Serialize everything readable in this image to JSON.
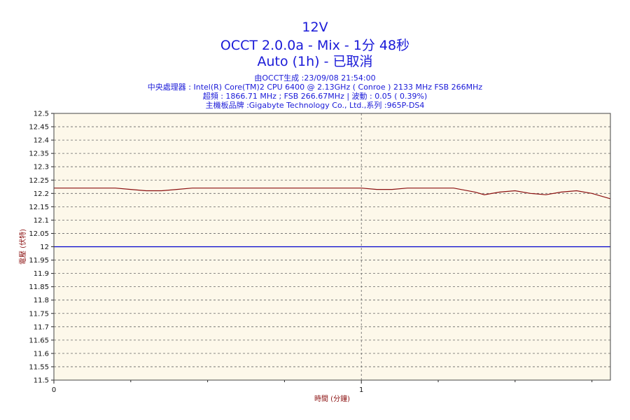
{
  "header": {
    "title": "12V",
    "subtitle": "OCCT 2.0.0a - Mix - 1分 48秒",
    "mode": "Auto (1h) - 已取消",
    "info": [
      "由OCCT生成 :23/09/08 21:54:00",
      "中央處理器 : Intel(R) Core(TM)2 CPU 6400 @ 2.13GHz ( Conroe ) 2133 MHz FSB 266MHz",
      "超頻 : 1866.71 MHz ; FSB 266.67MHz | 波動 : 0.05 ( 0.39%)",
      "主機板品牌 :Gigabyte Technology Co., Ltd.,系列 :965P-DS4"
    ]
  },
  "chart_data": {
    "type": "line",
    "title": "12V",
    "xlabel": "時間 (分鐘)",
    "ylabel": "電壓 (伏特)",
    "xlim": [
      0,
      1.81
    ],
    "ylim": [
      11.5,
      12.5
    ],
    "y_ticks": [
      "11.5",
      "11.55",
      "11.6",
      "11.65",
      "11.7",
      "11.75",
      "11.8",
      "11.85",
      "11.9",
      "11.95",
      "12",
      "12.05",
      "12.1",
      "12.15",
      "12.2",
      "12.25",
      "12.3",
      "12.35",
      "12.4",
      "12.45",
      "12.5"
    ],
    "x_tick_labels": [
      {
        "value": 0,
        "label": "0"
      },
      {
        "value": 1,
        "label": "1"
      }
    ],
    "x_minor_ticks": [
      0.25,
      0.5,
      0.75,
      1.25,
      1.5,
      1.75
    ],
    "grid": true,
    "background": "#fdf8ea",
    "series": [
      {
        "color": "#8b1010",
        "x": [
          0,
          0.1,
          0.2,
          0.25,
          0.3,
          0.35,
          0.4,
          0.45,
          0.5,
          0.6,
          0.7,
          0.8,
          0.9,
          1.0,
          1.05,
          1.1,
          1.15,
          1.2,
          1.3,
          1.37,
          1.4,
          1.45,
          1.5,
          1.55,
          1.6,
          1.65,
          1.7,
          1.75,
          1.81
        ],
        "y": [
          12.22,
          12.22,
          12.22,
          12.215,
          12.21,
          12.21,
          12.215,
          12.22,
          12.22,
          12.22,
          12.22,
          12.22,
          12.22,
          12.22,
          12.215,
          12.215,
          12.22,
          12.22,
          12.22,
          12.205,
          12.195,
          12.205,
          12.21,
          12.2,
          12.195,
          12.205,
          12.21,
          12.2,
          12.18
        ]
      },
      {
        "color": "#0000cc",
        "x": [
          0,
          1.81
        ],
        "y": [
          12.0,
          12.0
        ]
      }
    ]
  }
}
